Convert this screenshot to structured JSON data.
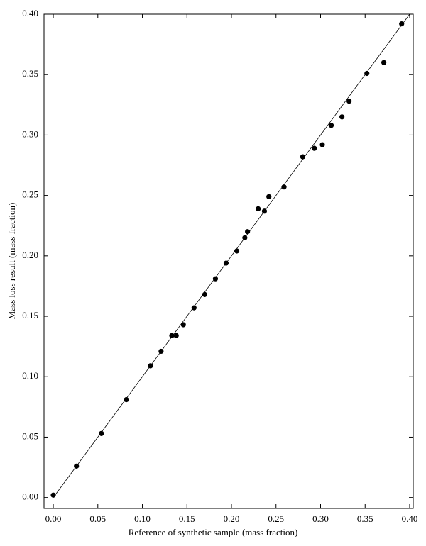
{
  "chart_data": {
    "type": "scatter",
    "x_label": "Reference of synthetic sample (mass fraction)",
    "y_label": "Mass loss result (mass fraction)",
    "color": "#000000",
    "x": [
      0.0,
      0.026,
      0.054,
      0.082,
      0.109,
      0.121,
      0.133,
      0.138,
      0.146,
      0.158,
      0.17,
      0.182,
      0.194,
      0.206,
      0.215,
      0.218,
      0.23,
      0.237,
      0.242,
      0.259,
      0.28,
      0.293,
      0.302,
      0.312,
      0.324,
      0.332,
      0.352,
      0.371,
      0.391
    ],
    "values": [
      0.002,
      0.026,
      0.053,
      0.081,
      0.109,
      0.121,
      0.134,
      0.134,
      0.143,
      0.157,
      0.168,
      0.181,
      0.194,
      0.204,
      0.215,
      0.22,
      0.239,
      0.237,
      0.249,
      0.257,
      0.282,
      0.289,
      0.292,
      0.308,
      0.315,
      0.328,
      0.351,
      0.36,
      0.392
    ],
    "line": {
      "x": [
        0,
        0.4
      ],
      "y": [
        0,
        0.4
      ]
    },
    "xlim": [
      -0.0104,
      0.404
    ],
    "ylim": [
      -0.009,
      0.4
    ],
    "xticks": [
      {
        "value": 0,
        "label": "0.00"
      },
      {
        "value": 0.05,
        "label": "0.05"
      },
      {
        "value": 0.1,
        "label": "0.10"
      },
      {
        "value": 0.15,
        "label": "0.15"
      },
      {
        "value": 0.2,
        "label": "0.20"
      },
      {
        "value": 0.25,
        "label": "0.25"
      },
      {
        "value": 0.3,
        "label": "0.30"
      },
      {
        "value": 0.35,
        "label": "0.35"
      },
      {
        "value": 0.4,
        "label": "0.40"
      }
    ],
    "yticks": [
      {
        "value": 0,
        "label": "0.00"
      },
      {
        "value": 0.05,
        "label": "0.05"
      },
      {
        "value": 0.1,
        "label": "0.10"
      },
      {
        "value": 0.15,
        "label": "0.15"
      },
      {
        "value": 0.2,
        "label": "0.20"
      },
      {
        "value": 0.25,
        "label": "0.25"
      },
      {
        "value": 0.3,
        "label": "0.30"
      },
      {
        "value": 0.35,
        "label": "0.35"
      },
      {
        "value": 0.4,
        "label": "0.40"
      }
    ]
  }
}
